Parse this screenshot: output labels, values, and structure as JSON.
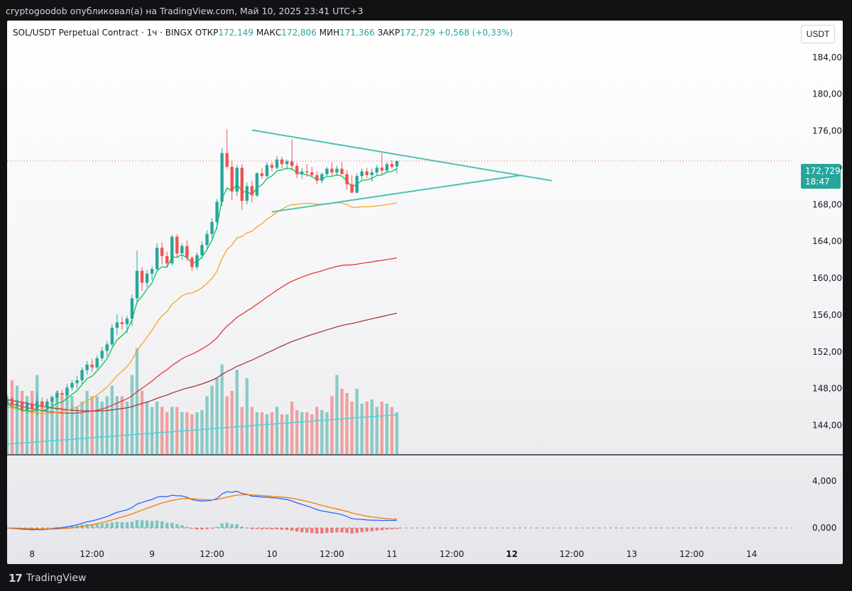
{
  "caption": "cryptogoodob опубликовал(а) на TradingView.com, Май 10, 2025 23:41 UTC+3",
  "legend": {
    "symbol": "SOL/USDT Perpetual Contract · 1ч · BINGX",
    "open_label": "ОТКР",
    "open": "172,149",
    "high_label": "МАКС",
    "high": "172,806",
    "low_label": "МИН",
    "low": "171,366",
    "close_label": "ЗАКР",
    "close": "172,729",
    "change": "+0,568 (+0,33%)"
  },
  "currency_button": "USDT",
  "price_badge": {
    "price": "172,729",
    "countdown": "18:47"
  },
  "footer": {
    "logo_text": "TradingView",
    "logo_mark": "17"
  },
  "colors": {
    "up": "#26a69a",
    "down": "#ef5350",
    "ema_fast": "#00c853",
    "ema_mid": "#f5a623",
    "ema_slow": "#e53935",
    "ema_slowest": "#a33b3b",
    "triangle": "#4dc1b3",
    "macd_line": "#2962ff",
    "signal_line": "#f57c00",
    "volume_ma": "#4dd0e1"
  },
  "chart_data": {
    "type": "candlestick",
    "symbol": "SOL/USDT",
    "timeframe": "1h",
    "price_axis_labels": [
      "184,000",
      "180,000",
      "176,000",
      "172,000",
      "168,000",
      "164,000",
      "160,000",
      "156,000",
      "152,000",
      "148,000",
      "144,000"
    ],
    "price_axis_values": [
      184,
      180,
      176,
      172,
      168,
      164,
      160,
      156,
      152,
      148,
      144
    ],
    "ylim": [
      140.8,
      188
    ],
    "time_axis_labels": [
      "8",
      "12:00",
      "9",
      "12:00",
      "10",
      "12:00",
      "11",
      "12:00",
      "12",
      "12:00",
      "13",
      "12:00",
      "14"
    ],
    "time_axis_hours": [
      0,
      12,
      24,
      36,
      48,
      60,
      72,
      84,
      96,
      108,
      120,
      132,
      144
    ],
    "bold_time_labels": [
      "12"
    ],
    "xlim_hours": [
      -5,
      152
    ],
    "last_price_line": 172.729,
    "candles_ohlc": [
      [
        146.4,
        147.3,
        146.0,
        146.9
      ],
      [
        146.9,
        147.1,
        145.9,
        146.2
      ],
      [
        146.2,
        146.8,
        145.8,
        146.4
      ],
      [
        146.4,
        146.6,
        145.4,
        145.7
      ],
      [
        145.7,
        146.6,
        145.3,
        146.3
      ],
      [
        146.3,
        146.5,
        145.6,
        145.8
      ],
      [
        145.8,
        147.5,
        145.1,
        146.6
      ],
      [
        146.6,
        147.0,
        145.8,
        146.0
      ],
      [
        146.0,
        146.9,
        145.6,
        146.6
      ],
      [
        146.6,
        147.2,
        146.2,
        147.0
      ],
      [
        147.0,
        147.8,
        146.5,
        147.5
      ],
      [
        147.5,
        147.9,
        147.0,
        147.3
      ],
      [
        147.3,
        148.5,
        147.1,
        148.1
      ],
      [
        148.1,
        148.9,
        147.8,
        148.6
      ],
      [
        148.6,
        149.4,
        148.0,
        148.9
      ],
      [
        148.9,
        150.3,
        148.5,
        150.0
      ],
      [
        150.0,
        151.0,
        149.5,
        150.6
      ],
      [
        150.6,
        151.2,
        149.8,
        150.3
      ],
      [
        150.3,
        151.6,
        150.1,
        151.3
      ],
      [
        151.3,
        152.5,
        151.0,
        152.1
      ],
      [
        152.1,
        153.2,
        151.5,
        152.8
      ],
      [
        152.8,
        155.0,
        152.6,
        154.6
      ],
      [
        154.6,
        156.1,
        153.8,
        155.2
      ],
      [
        155.2,
        155.8,
        154.4,
        155.0
      ],
      [
        155.0,
        155.9,
        154.0,
        155.6
      ],
      [
        155.6,
        158.2,
        154.8,
        157.8
      ],
      [
        157.8,
        163.0,
        157.2,
        160.8
      ],
      [
        160.8,
        161.2,
        158.6,
        159.5
      ],
      [
        159.5,
        160.9,
        159.0,
        160.5
      ],
      [
        160.5,
        161.3,
        159.8,
        161.0
      ],
      [
        161.0,
        163.8,
        160.7,
        163.3
      ],
      [
        163.3,
        163.9,
        161.5,
        162.4
      ],
      [
        162.4,
        162.9,
        161.2,
        161.6
      ],
      [
        161.6,
        164.7,
        161.4,
        164.5
      ],
      [
        164.5,
        164.8,
        162.2,
        162.7
      ],
      [
        162.7,
        163.8,
        162.0,
        163.5
      ],
      [
        163.5,
        164.1,
        161.9,
        162.2
      ],
      [
        162.2,
        162.4,
        160.8,
        161.2
      ],
      [
        161.2,
        162.8,
        160.9,
        162.5
      ],
      [
        162.5,
        164.0,
        162.1,
        163.6
      ],
      [
        163.6,
        165.2,
        163.2,
        164.8
      ],
      [
        164.8,
        166.5,
        164.3,
        166.1
      ],
      [
        166.1,
        168.6,
        165.3,
        168.3
      ],
      [
        168.3,
        174.1,
        167.8,
        173.6
      ],
      [
        173.6,
        176.2,
        171.9,
        172.1
      ],
      [
        172.1,
        172.8,
        168.5,
        169.4
      ],
      [
        169.4,
        172.3,
        168.9,
        172.0
      ],
      [
        172.0,
        172.4,
        167.4,
        168.4
      ],
      [
        168.4,
        170.4,
        168.0,
        170.0
      ],
      [
        170.0,
        170.6,
        168.2,
        169.0
      ],
      [
        169.0,
        171.5,
        168.8,
        171.4
      ],
      [
        171.4,
        172.0,
        170.8,
        171.1
      ],
      [
        171.1,
        172.6,
        170.9,
        172.3
      ],
      [
        172.3,
        172.6,
        171.6,
        172.0
      ],
      [
        172.0,
        173.3,
        171.8,
        172.9
      ],
      [
        172.9,
        173.2,
        171.9,
        172.4
      ],
      [
        172.4,
        172.9,
        171.8,
        172.7
      ],
      [
        172.7,
        175.1,
        171.7,
        172.2
      ],
      [
        172.2,
        172.5,
        170.9,
        171.3
      ],
      [
        171.3,
        172.0,
        170.8,
        171.6
      ],
      [
        171.6,
        172.4,
        171.0,
        171.5
      ],
      [
        171.5,
        172.1,
        171.0,
        171.2
      ],
      [
        171.2,
        171.6,
        170.2,
        170.6
      ],
      [
        170.6,
        171.5,
        170.3,
        171.3
      ],
      [
        171.3,
        172.1,
        171.0,
        171.9
      ],
      [
        171.9,
        172.6,
        171.1,
        171.5
      ],
      [
        171.5,
        172.2,
        171.1,
        171.9
      ],
      [
        171.9,
        172.6,
        171.3,
        171.3
      ],
      [
        171.3,
        171.7,
        169.6,
        170.2
      ],
      [
        170.2,
        171.2,
        169.2,
        169.3
      ],
      [
        169.3,
        171.4,
        169.2,
        171.1
      ],
      [
        171.1,
        171.9,
        170.7,
        171.6
      ],
      [
        171.6,
        172.0,
        170.9,
        171.2
      ],
      [
        171.2,
        171.9,
        170.5,
        171.5
      ],
      [
        171.5,
        172.3,
        171.2,
        172.0
      ],
      [
        172.0,
        173.6,
        171.2,
        171.7
      ],
      [
        171.7,
        172.6,
        171.4,
        172.4
      ],
      [
        172.4,
        172.8,
        171.9,
        172.1
      ],
      [
        172.149,
        172.806,
        171.366,
        172.729
      ]
    ],
    "volume_relative": [
      0.55,
      0.7,
      0.65,
      0.6,
      0.55,
      0.6,
      0.75,
      0.5,
      0.5,
      0.55,
      0.6,
      0.55,
      0.6,
      0.55,
      0.45,
      0.5,
      0.6,
      0.55,
      0.55,
      0.5,
      0.55,
      0.65,
      0.55,
      0.55,
      0.5,
      0.75,
      1.0,
      0.6,
      0.5,
      0.45,
      0.5,
      0.45,
      0.4,
      0.45,
      0.45,
      0.4,
      0.4,
      0.38,
      0.4,
      0.42,
      0.55,
      0.65,
      0.72,
      0.85,
      0.55,
      0.6,
      0.8,
      0.45,
      0.72,
      0.45,
      0.4,
      0.4,
      0.38,
      0.4,
      0.45,
      0.38,
      0.38,
      0.5,
      0.42,
      0.4,
      0.4,
      0.38,
      0.45,
      0.42,
      0.4,
      0.55,
      0.75,
      0.62,
      0.58,
      0.5,
      0.62,
      0.48,
      0.5,
      0.52,
      0.45,
      0.5,
      0.48,
      0.45,
      0.4
    ],
    "ema_fast_end": 171.9,
    "ema_mid_end": 168.2,
    "ema_slow_end": 162.2,
    "ema_slowest_end": 156.2,
    "triangle_upper": {
      "start_hour": 44,
      "start_price": 176.1,
      "end_hour": 104,
      "end_price": 170.6
    },
    "triangle_lower": {
      "start_hour": 48,
      "start_price": 167.2,
      "end_hour": 98,
      "end_price": 171.2
    },
    "macd_axis_labels": [
      "4,000",
      "0,000"
    ],
    "macd_axis_values": [
      4,
      0
    ]
  }
}
